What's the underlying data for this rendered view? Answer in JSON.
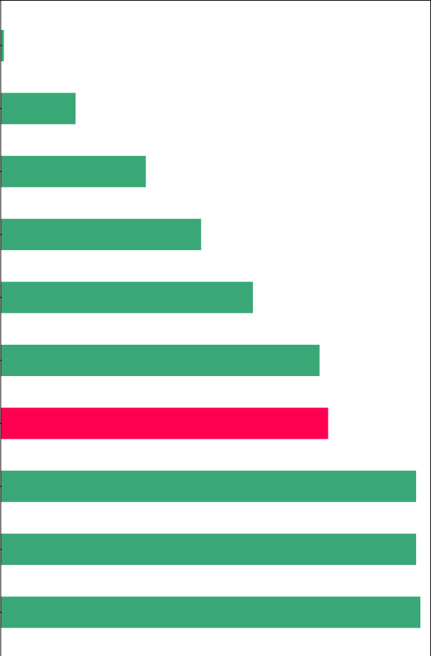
{
  "chart_data": {
    "type": "bar",
    "orientation": "horizontal",
    "title": "",
    "xlabel": "",
    "ylabel": "",
    "xlim": [
      0,
      605
    ],
    "grid": false,
    "legend": "none",
    "values": [
      4,
      105,
      204,
      282,
      355,
      449,
      461,
      585,
      585,
      591
    ],
    "highlight_index": 6,
    "colors": {
      "bar": "#3aa876",
      "highlight": "#ff0050",
      "axis": "#000000"
    }
  }
}
